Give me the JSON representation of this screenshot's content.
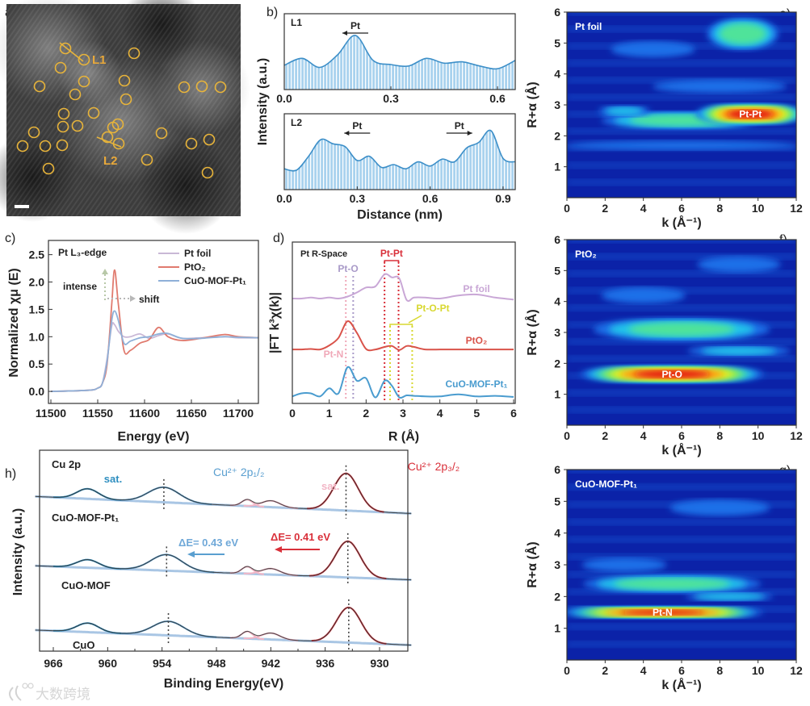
{
  "panel_letters": {
    "a": "a)",
    "b": "b)",
    "c": "c)",
    "d": "d)",
    "e": "e)",
    "f": "f)",
    "g": "g)",
    "h": "h)"
  },
  "watermark": "大数跨境",
  "colors": {
    "accent_yellow": "#e8b43a",
    "line_blue": "#3d8fc8",
    "red": "#d9534a",
    "pink": "#f2b6c6",
    "purple": "#c9a7d6",
    "yellow": "#d8d830"
  },
  "chart_data": [
    {
      "id": "a",
      "type": "image",
      "labels": {
        "l1": "L1",
        "l2": "L2"
      }
    },
    {
      "id": "b",
      "type": "area",
      "ylabel": "Intensity (a.u.)",
      "xlabel": "Distance (nm)",
      "subplots": [
        {
          "name": "L1",
          "xlim": [
            0,
            0.65
          ],
          "ylim": [
            0,
            1
          ],
          "xticks": [
            0.0,
            0.3,
            0.6
          ],
          "tick_labels": [
            "0.0",
            "0.3",
            "0.6"
          ],
          "x": [
            0,
            0.05,
            0.1,
            0.15,
            0.2,
            0.25,
            0.3,
            0.35,
            0.4,
            0.45,
            0.5,
            0.55,
            0.6,
            0.65
          ],
          "y": [
            0.35,
            0.45,
            0.32,
            0.5,
            0.78,
            0.42,
            0.36,
            0.34,
            0.45,
            0.38,
            0.4,
            0.34,
            0.3,
            0.42
          ],
          "annotations": [
            {
              "text": "Pt",
              "direction": "left",
              "x": 0.2
            }
          ]
        },
        {
          "name": "L2",
          "xlim": [
            0,
            0.95
          ],
          "ylim": [
            0,
            1
          ],
          "xticks": [
            0.0,
            0.3,
            0.6,
            0.9
          ],
          "tick_labels": [
            "0.0",
            "0.3",
            "0.6",
            "0.9"
          ],
          "x": [
            0,
            0.05,
            0.1,
            0.15,
            0.2,
            0.25,
            0.3,
            0.35,
            0.4,
            0.45,
            0.5,
            0.55,
            0.6,
            0.65,
            0.7,
            0.75,
            0.8,
            0.85,
            0.9,
            0.95
          ],
          "y": [
            0.3,
            0.28,
            0.48,
            0.72,
            0.66,
            0.62,
            0.42,
            0.48,
            0.32,
            0.36,
            0.3,
            0.4,
            0.34,
            0.44,
            0.4,
            0.6,
            0.68,
            0.85,
            0.45,
            0.4
          ],
          "annotations": [
            {
              "text": "Pt",
              "direction": "left",
              "x": 0.3
            },
            {
              "text": "Pt",
              "direction": "right",
              "x": 0.72
            }
          ]
        }
      ]
    },
    {
      "id": "c",
      "type": "line",
      "xlabel": "Energy (eV)",
      "ylabel": "Normalized χμ (E)",
      "xlim": [
        11500,
        11725
      ],
      "ylim": [
        -0.22,
        2.76
      ],
      "xticks": [
        11500,
        11550,
        11600,
        11650,
        11700
      ],
      "yticks": [
        0.0,
        0.5,
        1.0,
        1.5,
        2.0,
        2.5
      ],
      "ytick_labels": [
        "0.0",
        "0.5",
        "1.0",
        "1.5",
        "2.0",
        "2.5"
      ],
      "title": "Pt L₃-edge",
      "annotations": {
        "intense": "intense",
        "shift": "shift"
      },
      "legend_position": "top-right",
      "x": [
        11500,
        11540,
        11550,
        11555,
        11560,
        11565,
        11568,
        11572,
        11578,
        11585,
        11595,
        11605,
        11615,
        11625,
        11640,
        11660,
        11685,
        11700,
        11725
      ],
      "series": [
        {
          "name": "Pt foil",
          "color": "#c9b8d6",
          "values": [
            0,
            0.02,
            0.06,
            0.15,
            0.6,
            1.2,
            1.22,
            1.1,
            1.0,
            1.0,
            1.05,
            0.97,
            1.02,
            1.05,
            0.97,
            0.98,
            1.0,
            0.98,
            0.98
          ]
        },
        {
          "name": "PtO₂",
          "color": "#e07a6e",
          "values": [
            0,
            0.02,
            0.06,
            0.15,
            0.5,
            1.6,
            2.22,
            1.6,
            0.75,
            0.75,
            0.88,
            0.95,
            1.17,
            1.0,
            0.93,
            0.97,
            1.04,
            1.0,
            0.98
          ]
        },
        {
          "name": "CuO-MOF-Pt₁",
          "color": "#8fb0d8",
          "values": [
            0,
            0.02,
            0.06,
            0.15,
            0.55,
            1.3,
            1.47,
            1.3,
            0.88,
            0.92,
            0.98,
            1.0,
            1.05,
            1.06,
            0.97,
            0.97,
            1.0,
            0.99,
            0.98
          ]
        }
      ]
    },
    {
      "id": "d",
      "type": "line",
      "xlabel": "R (Å)",
      "ylabel": "|FT k³χ(k)|",
      "xlim": [
        0,
        6
      ],
      "ylim": [
        0,
        3.2
      ],
      "xticks": [
        0,
        1,
        2,
        3,
        4,
        5,
        6
      ],
      "title": "Pt R-Space",
      "x": [
        0,
        0.25,
        0.5,
        0.75,
        1,
        1.25,
        1.5,
        1.75,
        2,
        2.25,
        2.5,
        2.7,
        2.9,
        3.1,
        3.3,
        3.6,
        4,
        4.5,
        5,
        5.5,
        6
      ],
      "series": [
        {
          "name": "Pt foil",
          "color": "#c9a7d6",
          "values": [
            2.08,
            2.08,
            2.1,
            2.08,
            2.1,
            2.08,
            2.12,
            2.2,
            2.3,
            2.32,
            2.56,
            2.5,
            2.48,
            2.05,
            2.1,
            2.1,
            2.08,
            2.14,
            2.16,
            2.1,
            2.06
          ]
        },
        {
          "name": "PtO₂",
          "color": "#d9534a",
          "values": [
            1.07,
            1.07,
            1.08,
            1.07,
            1.15,
            1.3,
            1.63,
            1.4,
            1.08,
            1.07,
            1.12,
            1.14,
            1.06,
            1.14,
            1.12,
            1.07,
            1.07,
            1.07,
            1.07,
            1.07,
            1.07
          ]
        },
        {
          "name": "CuO-MOF-Pt₁",
          "color": "#4a9ccf",
          "values": [
            0.14,
            0.2,
            0.2,
            0.14,
            0.3,
            0.2,
            0.72,
            0.45,
            0.5,
            0.12,
            0.45,
            0.35,
            0.12,
            0.16,
            0.15,
            0.14,
            0.14,
            0.18,
            0.14,
            0.15,
            0.13
          ]
        }
      ],
      "annotations": [
        {
          "text": "Pt-Pt",
          "color": "#d9303a",
          "R": [
            2.5,
            2.88
          ]
        },
        {
          "text": "Pt-O",
          "color": "#a99ac8",
          "R": [
            1.65
          ]
        },
        {
          "text": "Pt-N",
          "color": "#f0a8b8",
          "R": [
            1.45
          ]
        },
        {
          "text": "Pt-O-Pt",
          "color": "#d8d830",
          "R": [
            2.65,
            3.25
          ]
        }
      ]
    },
    {
      "id": "e",
      "type": "heatmap",
      "title": "Pt foil",
      "xlabel": "k (Å⁻¹)",
      "ylabel": "R+α (Å)",
      "xlim": [
        0,
        12
      ],
      "ylim": [
        0,
        6
      ],
      "xticks": [
        0,
        2,
        4,
        6,
        8,
        10,
        12
      ],
      "yticks": [
        1,
        2,
        3,
        4,
        5,
        6
      ],
      "hotspots": [
        {
          "k": 6,
          "R": 1.7,
          "intensity": 0.28,
          "dk": 14,
          "dR": 0.35
        },
        {
          "k": 6,
          "R": 2.5,
          "intensity": 0.55,
          "dk": 9,
          "dR": 0.6
        },
        {
          "k": 9.6,
          "R": 2.7,
          "intensity": 1.0,
          "dk": 6,
          "dR": 0.7,
          "label": "Pt-Pt"
        },
        {
          "k": 3,
          "R": 2.8,
          "intensity": 0.35,
          "dk": 3,
          "dR": 0.4
        },
        {
          "k": 9.2,
          "R": 5.3,
          "intensity": 0.55,
          "dk": 4,
          "dR": 1.1
        },
        {
          "k": 4.5,
          "R": 4.8,
          "intensity": 0.3,
          "dk": 5,
          "dR": 0.6
        },
        {
          "k": 8,
          "R": 3.6,
          "intensity": 0.3,
          "dk": 8,
          "dR": 0.5
        }
      ]
    },
    {
      "id": "f",
      "type": "heatmap",
      "title": "PtO₂",
      "xlabel": "k (Å⁻¹)",
      "ylabel": "R+α (Å)",
      "xlim": [
        0,
        12
      ],
      "ylim": [
        0,
        6
      ],
      "xticks": [
        0,
        2,
        4,
        6,
        8,
        10,
        12
      ],
      "yticks": [
        1,
        2,
        3,
        4,
        5,
        6
      ],
      "hotspots": [
        {
          "k": 5.5,
          "R": 1.65,
          "intensity": 1.0,
          "dk": 10,
          "dR": 0.6,
          "label": "Pt-O"
        },
        {
          "k": 6,
          "R": 3.1,
          "intensity": 0.5,
          "dk": 10,
          "dR": 0.8
        },
        {
          "k": 9,
          "R": 2.4,
          "intensity": 0.35,
          "dk": 6,
          "dR": 0.4
        },
        {
          "k": 4,
          "R": 4.2,
          "intensity": 0.3,
          "dk": 5,
          "dR": 0.6
        },
        {
          "k": 9,
          "R": 5.2,
          "intensity": 0.28,
          "dk": 5,
          "dR": 0.6
        }
      ]
    },
    {
      "id": "g",
      "type": "heatmap",
      "title": "CuO-MOF-Pt₁",
      "xlabel": "k (Å⁻¹)",
      "ylabel": "R+α (Å)",
      "xlim": [
        0,
        12
      ],
      "ylim": [
        0,
        6
      ],
      "xticks": [
        0,
        2,
        4,
        6,
        8,
        10,
        12
      ],
      "yticks": [
        1,
        2,
        3,
        4,
        5,
        6
      ],
      "hotspots": [
        {
          "k": 5,
          "R": 1.5,
          "intensity": 1.0,
          "dk": 11,
          "dR": 0.4,
          "label": "Pt-N"
        },
        {
          "k": 5.5,
          "R": 2.4,
          "intensity": 0.55,
          "dk": 10,
          "dR": 0.6
        },
        {
          "k": 8.5,
          "R": 2.0,
          "intensity": 0.45,
          "dk": 5,
          "dR": 0.3
        },
        {
          "k": 3,
          "R": 3.0,
          "intensity": 0.32,
          "dk": 5,
          "dR": 0.5
        },
        {
          "k": 8,
          "R": 4.8,
          "intensity": 0.28,
          "dk": 6,
          "dR": 0.6
        }
      ]
    },
    {
      "id": "h",
      "type": "line",
      "xlabel": "Binding Energy(eV)",
      "ylabel": "Intensity (a.u.)",
      "xlim": [
        968,
        926.5
      ],
      "ylim": [
        0,
        10
      ],
      "xticks": [
        966,
        960,
        954,
        948,
        942,
        936,
        930
      ],
      "title": "Cu 2p",
      "labels": {
        "sat_blue": "sat.",
        "sat_pink": "sat.",
        "p12": "Cu²⁺ 2p₁/₂",
        "p32": "Cu²⁺ 2p₃/₂",
        "dE_blue": "ΔE= 0.43 eV",
        "dE_red": "ΔE= 0.41 eV"
      },
      "series": [
        {
          "name": "CuO-MOF-Pt₁",
          "baseline": [
            7.7,
            6.85
          ],
          "peaks": [
            {
              "center": 962.2,
              "height": 0.5,
              "sigma": 1.2,
              "component": "sat"
            },
            {
              "center": 953.8,
              "height": 0.75,
              "sigma": 1.7,
              "component": "2p1/2"
            },
            {
              "center": 944.6,
              "height": 0.32,
              "sigma": 0.6,
              "component": "sat2"
            },
            {
              "center": 942.0,
              "height": 0.32,
              "sigma": 1.0,
              "component": "sat2"
            },
            {
              "center": 933.7,
              "height": 1.85,
              "sigma": 1.35,
              "component": "2p3/2"
            }
          ]
        },
        {
          "name": "CuO-MOF",
          "baseline": [
            4.25,
            3.55
          ],
          "peaks": [
            {
              "center": 962.2,
              "height": 0.4,
              "sigma": 1.2,
              "component": "sat"
            },
            {
              "center": 953.5,
              "height": 0.8,
              "sigma": 1.7,
              "component": "2p1/2"
            },
            {
              "center": 944.6,
              "height": 0.35,
              "sigma": 0.6,
              "component": "sat2"
            },
            {
              "center": 942.0,
              "height": 0.3,
              "sigma": 1.0,
              "component": "sat2"
            },
            {
              "center": 933.5,
              "height": 1.8,
              "sigma": 1.35,
              "component": "2p3/2"
            }
          ]
        },
        {
          "name": "CuO",
          "baseline": [
            1.05,
            0.3
          ],
          "peaks": [
            {
              "center": 962.2,
              "height": 0.45,
              "sigma": 1.2,
              "component": "sat"
            },
            {
              "center": 953.3,
              "height": 0.7,
              "sigma": 1.7,
              "component": "2p1/2"
            },
            {
              "center": 944.6,
              "height": 0.35,
              "sigma": 0.6,
              "component": "sat2"
            },
            {
              "center": 942.0,
              "height": 0.32,
              "sigma": 1.0,
              "component": "sat2"
            },
            {
              "center": 933.4,
              "height": 1.75,
              "sigma": 1.35,
              "component": "2p3/2"
            }
          ]
        }
      ]
    }
  ]
}
